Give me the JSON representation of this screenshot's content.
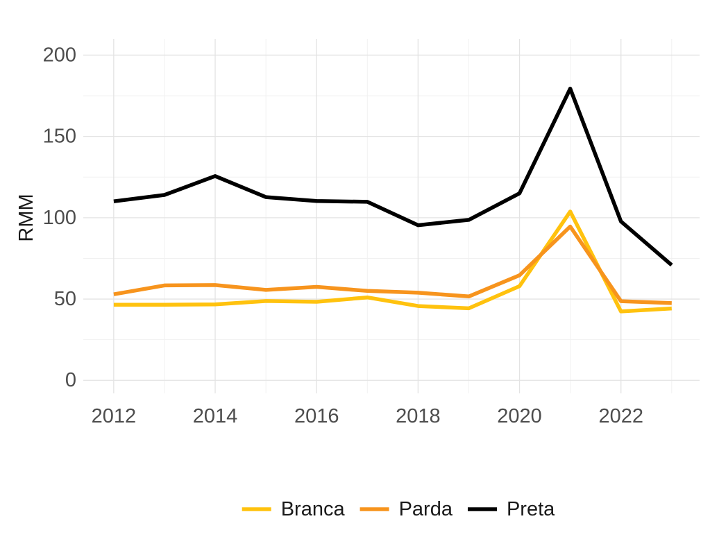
{
  "chart_data": {
    "type": "line",
    "title": "",
    "xlabel": "",
    "ylabel": "RMM",
    "x": [
      2012,
      2013,
      2014,
      2015,
      2016,
      2017,
      2018,
      2019,
      2020,
      2021,
      2022,
      2023
    ],
    "xlim": [
      2011.4,
      2023.55
    ],
    "ylim": [
      -8,
      210
    ],
    "xticks": [
      2012,
      2014,
      2016,
      2018,
      2020,
      2022
    ],
    "yticks": [
      0,
      50,
      100,
      150,
      200
    ],
    "grid": true,
    "legend_position": "bottom",
    "series": [
      {
        "name": "Branca",
        "color": "#FFC20E",
        "values": [
          46.5,
          46.5,
          46.7,
          48.8,
          48.3,
          51.0,
          45.7,
          44.3,
          57.9,
          103.8,
          42.4,
          44.2
        ]
      },
      {
        "name": "Parda",
        "color": "#F7941D",
        "values": [
          52.9,
          58.4,
          58.6,
          55.6,
          57.5,
          55.0,
          53.9,
          51.6,
          64.6,
          94.6,
          48.7,
          47.5
        ]
      },
      {
        "name": "Preta",
        "color": "#000000",
        "values": [
          110.1,
          114.0,
          125.6,
          112.7,
          110.3,
          109.8,
          95.4,
          98.7,
          115.0,
          179.4,
          97.7,
          70.9
        ]
      }
    ]
  }
}
